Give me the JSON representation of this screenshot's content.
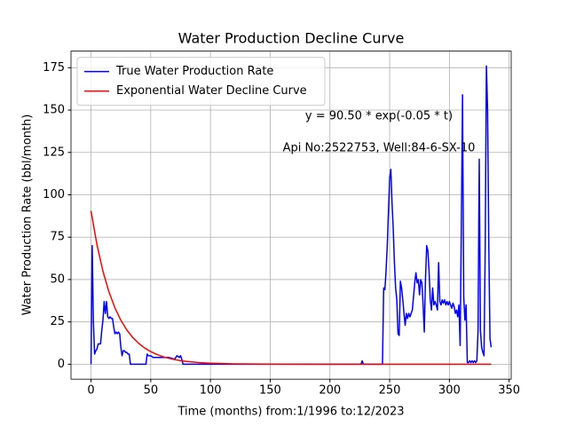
{
  "chart_data": {
    "type": "line",
    "title": "Water Production Decline Curve",
    "xlabel": "Time (months) from:1/1996 to:12/2023",
    "ylabel": "Water Production Rate (bbl/month)",
    "annotations": [
      "y = 90.50 * exp(-0.05 * t)",
      "Api No:2522753, Well:84-6-SX-10"
    ],
    "xlim": [
      -16.75,
      351.75
    ],
    "ylim": [
      -8.8,
      184.8
    ],
    "xticks": [
      0,
      50,
      100,
      150,
      200,
      250,
      300,
      350
    ],
    "yticks": [
      0,
      25,
      50,
      75,
      100,
      125,
      150,
      175
    ],
    "grid": true,
    "legend": "upper left",
    "series": [
      {
        "name": "True Water Production Rate",
        "color": "#0000ff",
        "x": [
          0,
          1,
          2,
          3,
          4,
          5,
          6,
          7,
          8,
          9,
          10,
          11,
          12,
          13,
          14,
          15,
          16,
          17,
          18,
          19,
          20,
          21,
          22,
          23,
          24,
          25,
          26,
          27,
          28,
          29,
          30,
          31,
          32,
          33,
          46,
          47,
          48,
          50,
          52,
          55,
          60,
          65,
          70,
          72,
          74,
          75,
          76,
          77,
          226,
          227,
          228,
          244,
          245,
          246,
          247,
          248,
          249,
          250,
          251,
          252,
          253,
          254,
          255,
          256,
          257,
          258,
          259,
          260,
          261,
          262,
          263,
          264,
          265,
          266,
          267,
          268,
          269,
          270,
          271,
          272,
          273,
          274,
          275,
          276,
          277,
          278,
          279,
          280,
          281,
          282,
          283,
          284,
          285,
          286,
          287,
          288,
          289,
          290,
          291,
          292,
          293,
          294,
          295,
          296,
          297,
          298,
          299,
          300,
          301,
          302,
          303,
          304,
          305,
          306,
          307,
          308,
          309,
          310,
          311,
          312,
          313,
          314,
          315,
          316,
          317,
          318,
          319,
          320,
          321,
          322,
          323,
          324,
          325,
          326,
          327,
          328,
          329,
          330,
          331,
          332,
          333,
          334,
          335
        ],
        "values": [
          0,
          70,
          25,
          6,
          8,
          9,
          12,
          12,
          12,
          20,
          26,
          37,
          30,
          37,
          28,
          27,
          28,
          27,
          27,
          22,
          18,
          19,
          18,
          19,
          18,
          10,
          5,
          8,
          8,
          7,
          7,
          6,
          6,
          0,
          0,
          6,
          5,
          5,
          4,
          4,
          4,
          4,
          3,
          5,
          4,
          5,
          3,
          0,
          0,
          2,
          0,
          0,
          45,
          44,
          55,
          70,
          90,
          110,
          115,
          95,
          80,
          60,
          45,
          38,
          18,
          17,
          49,
          45,
          38,
          30,
          23,
          30,
          27,
          30,
          28,
          30,
          32,
          40,
          48,
          54,
          48,
          50,
          41,
          50,
          48,
          35,
          19,
          50,
          70,
          67,
          55,
          38,
          32,
          45,
          35,
          37,
          35,
          32,
          60,
          37,
          35,
          38,
          36,
          38,
          35,
          37,
          35,
          37,
          35,
          33,
          36,
          34,
          30,
          32,
          28,
          35,
          11,
          80,
          159,
          40,
          26,
          35,
          1,
          1,
          2,
          1,
          2,
          1,
          2,
          1,
          2,
          20,
          121,
          20,
          10,
          7,
          5,
          70,
          176,
          150,
          70,
          15,
          10
        ]
      },
      {
        "name": "Exponential Water Decline Curve",
        "color": "#ff0000",
        "x": [
          0,
          5,
          10,
          15,
          20,
          25,
          30,
          35,
          40,
          45,
          50,
          55,
          60,
          65,
          70,
          75,
          80,
          90,
          100,
          120,
          150,
          200,
          250,
          335
        ],
        "values": [
          90.5,
          70.48,
          54.89,
          42.75,
          33.29,
          25.93,
          20.19,
          15.73,
          12.25,
          9.54,
          7.43,
          5.79,
          4.51,
          3.51,
          2.73,
          2.13,
          1.66,
          1.0,
          0.61,
          0.22,
          0.05,
          0.004,
          0.0003,
          0
        ]
      }
    ]
  }
}
